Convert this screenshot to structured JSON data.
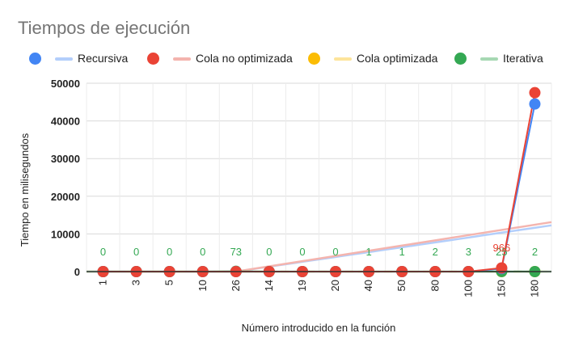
{
  "chart_data": {
    "type": "line",
    "title": "Tiempos de ejecución",
    "xlabel": "Número introducido en la función",
    "ylabel": "Tiempo en milisegundos",
    "categories": [
      "1",
      "3",
      "5",
      "10",
      "26",
      "14",
      "19",
      "20",
      "40",
      "50",
      "80",
      "100",
      "150",
      "180"
    ],
    "ylim": [
      0,
      50000
    ],
    "yticks": [
      0,
      10000,
      20000,
      30000,
      40000,
      50000
    ],
    "grid": true,
    "legend_position": "top",
    "series": [
      {
        "name": "Recursiva",
        "color": "#4285f4",
        "trend_color": "#b3cefb",
        "values": [
          0,
          0,
          0,
          0,
          0,
          0,
          0,
          0,
          0,
          0,
          0,
          0,
          800,
          44500
        ]
      },
      {
        "name": "Cola no optimizada",
        "color": "#ea4335",
        "trend_color": "#f4b4ae",
        "values": [
          0,
          0,
          0,
          0,
          0,
          0,
          0,
          0,
          0,
          0,
          0,
          0,
          966,
          47500
        ]
      },
      {
        "name": "Cola optimizada",
        "color": "#fbbc04",
        "trend_color": "#fde49b",
        "values": [
          0,
          0,
          0,
          0,
          0,
          0,
          0,
          0,
          0,
          0,
          0,
          0,
          0,
          0
        ]
      },
      {
        "name": "Iterativa",
        "color": "#34a853",
        "trend_color": "#a6d8b3",
        "values": [
          0,
          0,
          0,
          0,
          73,
          0,
          0,
          0,
          1,
          1,
          2,
          3,
          25,
          2
        ]
      }
    ],
    "data_labels": [
      {
        "series": "Iterativa",
        "color": "#34a853",
        "labels": [
          "0",
          "0",
          "0",
          "0",
          "73",
          "0",
          "0",
          "0",
          "1",
          "1",
          "2",
          "3",
          "25",
          "2"
        ]
      },
      {
        "series": "Cola no optimizada",
        "color": "#ea4335",
        "labels": [
          "",
          "",
          "",
          "",
          "",
          "",
          "",
          "",
          "",
          "",
          "",
          "",
          "966",
          ""
        ]
      }
    ]
  }
}
